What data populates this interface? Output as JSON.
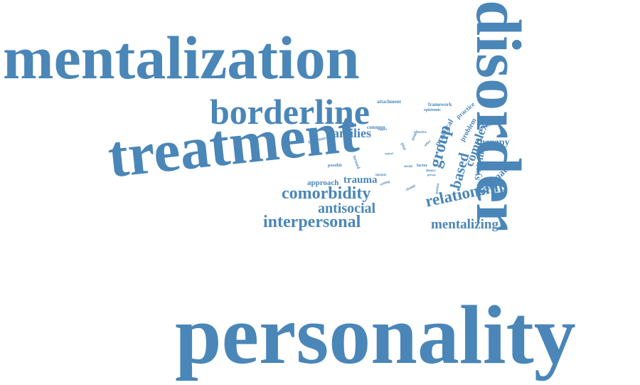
{
  "word_cloud": {
    "color": "#4a86b8",
    "words": [
      {
        "text": "personality",
        "key": "personality"
      },
      {
        "text": "disorder",
        "key": "disorder"
      },
      {
        "text": "mentalization",
        "key": "mentalization"
      },
      {
        "text": "treatment",
        "key": "treatment"
      },
      {
        "text": "borderline",
        "key": "borderline"
      },
      {
        "text": "comorbidity",
        "key": "comorbidity"
      },
      {
        "text": "interpersonal",
        "key": "interpersonal"
      },
      {
        "text": "antisocial",
        "key": "antisocial"
      },
      {
        "text": "relationship",
        "key": "relationship"
      },
      {
        "text": "mentalizing",
        "key": "mentalizing"
      },
      {
        "text": "families",
        "key": "families"
      },
      {
        "text": "trauma",
        "key": "trauma"
      },
      {
        "text": "approach",
        "key": "approach"
      },
      {
        "text": "group",
        "key": "group"
      },
      {
        "text": "based",
        "key": "based"
      },
      {
        "text": "complex",
        "key": "complex"
      },
      {
        "text": "therapy",
        "key": "therapy"
      },
      {
        "text": "system",
        "key": "system"
      },
      {
        "text": "traumatic",
        "key": "traumatic"
      },
      {
        "text": "practical",
        "key": "practical"
      },
      {
        "text": "problem",
        "key": "problem"
      },
      {
        "text": "practice",
        "key": "practice"
      },
      {
        "text": "framework",
        "key": "framework"
      },
      {
        "text": "epistemic",
        "key": "epistemic"
      },
      {
        "text": "attachment",
        "key": "attachment"
      },
      {
        "text": "common",
        "key": "common"
      },
      {
        "text": "resilience",
        "key": "resilience"
      },
      {
        "text": "behaviour",
        "key": "behaviour"
      },
      {
        "text": "possible",
        "key": "possible"
      },
      {
        "text": "focused",
        "key": "focused"
      },
      {
        "text": "mental",
        "key": "mental"
      },
      {
        "text": "factor",
        "key": "factor"
      },
      {
        "text": "social",
        "key": "social"
      },
      {
        "text": "setting",
        "key": "setting"
      },
      {
        "text": "change",
        "key": "change"
      },
      {
        "text": "theory",
        "key": "theory"
      },
      {
        "text": "person",
        "key": "person"
      },
      {
        "text": "experience",
        "key": "experience"
      },
      {
        "text": "individual",
        "key": "individual"
      },
      {
        "text": "effective",
        "key": "effective"
      },
      {
        "text": "other",
        "key": "other"
      },
      {
        "text": "guide",
        "key": "guide"
      },
      {
        "text": "post",
        "key": "post"
      },
      {
        "text": "support",
        "key": "support"
      },
      {
        "text": "patient",
        "key": "patient"
      },
      {
        "text": "typical",
        "key": "typical"
      }
    ]
  }
}
